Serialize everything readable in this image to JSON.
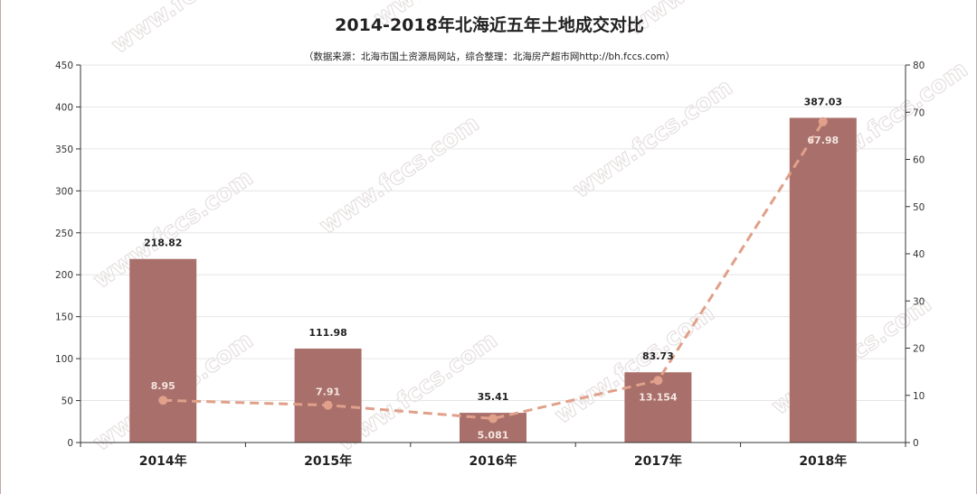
{
  "chart_data": {
    "type": "bar",
    "title": "2014-2018年北海近五年土地成交对比",
    "subtitle": "（数据来源：北海市国土资源局网站，综合整理：北海房产超市网http://bh.fccs.com）",
    "categories": [
      "2014年",
      "2015年",
      "2016年",
      "2017年",
      "2018年"
    ],
    "series": [
      {
        "type": "bar",
        "axis": "left",
        "values": [
          218.82,
          111.98,
          35.41,
          83.73,
          387.03
        ],
        "labels": [
          "218.82",
          "111.98",
          "35.41",
          "83.73",
          "387.03"
        ]
      },
      {
        "type": "line",
        "style": "dashed",
        "axis": "right",
        "values": [
          8.95,
          7.91,
          5.081,
          13.154,
          67.98
        ],
        "labels": [
          "8.95",
          "7.91",
          "5.081",
          "13.154",
          "67.98"
        ]
      }
    ],
    "ylim": [
      0,
      450
    ],
    "yticks": [
      "0",
      "50",
      "100",
      "150",
      "200",
      "250",
      "300",
      "350",
      "400",
      "450"
    ],
    "y2lim": [
      0,
      80
    ],
    "y2ticks": [
      "0",
      "10",
      "20",
      "30",
      "40",
      "50",
      "60",
      "70",
      "80"
    ],
    "grid": true,
    "legend": "none",
    "colors": {
      "bar": "#a96f6a",
      "line": "#e0a08a",
      "grid": "#e6e6e6",
      "axis": "#333333"
    },
    "watermark": "www.fccs.com"
  }
}
